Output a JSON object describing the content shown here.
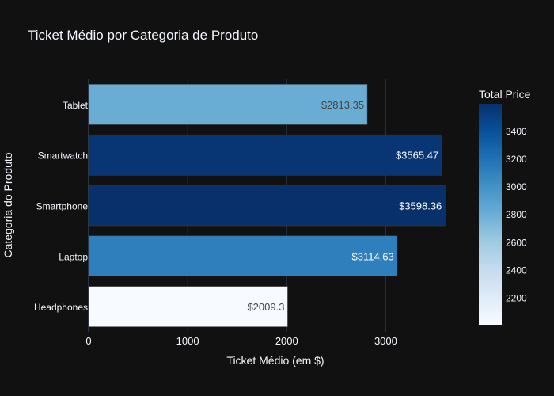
{
  "chart_data": {
    "type": "bar",
    "orientation": "horizontal",
    "title": "Ticket Médio por Categoria de Produto",
    "xlabel": "Ticket Médio (em $)",
    "ylabel": "Categoria do Produto",
    "categories": [
      "Headphones",
      "Laptop",
      "Smartphone",
      "Smartwatch",
      "Tablet"
    ],
    "values": [
      2009.3,
      3114.63,
      3598.36,
      3565.47,
      2813.35
    ],
    "data_labels": [
      "$2009.3",
      "$3114.63",
      "$3598.36",
      "$3565.47",
      "$2813.35"
    ],
    "xlim": [
      0,
      3600
    ],
    "xticks": [
      0,
      1000,
      2000,
      3000
    ],
    "xtick_labels": [
      "0",
      "1000",
      "2000",
      "3000"
    ],
    "grid": true,
    "colorbar": {
      "title": "Total Price",
      "colorscale": "Blues",
      "range": [
        2009.3,
        3598.36
      ],
      "ticks": [
        2200,
        2400,
        2600,
        2800,
        3000,
        3200,
        3400
      ],
      "tick_labels": [
        "2200",
        "2400",
        "2600",
        "2800",
        "3000",
        "3200",
        "3400"
      ]
    },
    "colors": {
      "background": "#111111",
      "grid": "#283442",
      "text": "#f2f5fa",
      "label_dark": "#444444",
      "label_light": "#ffffff"
    }
  }
}
